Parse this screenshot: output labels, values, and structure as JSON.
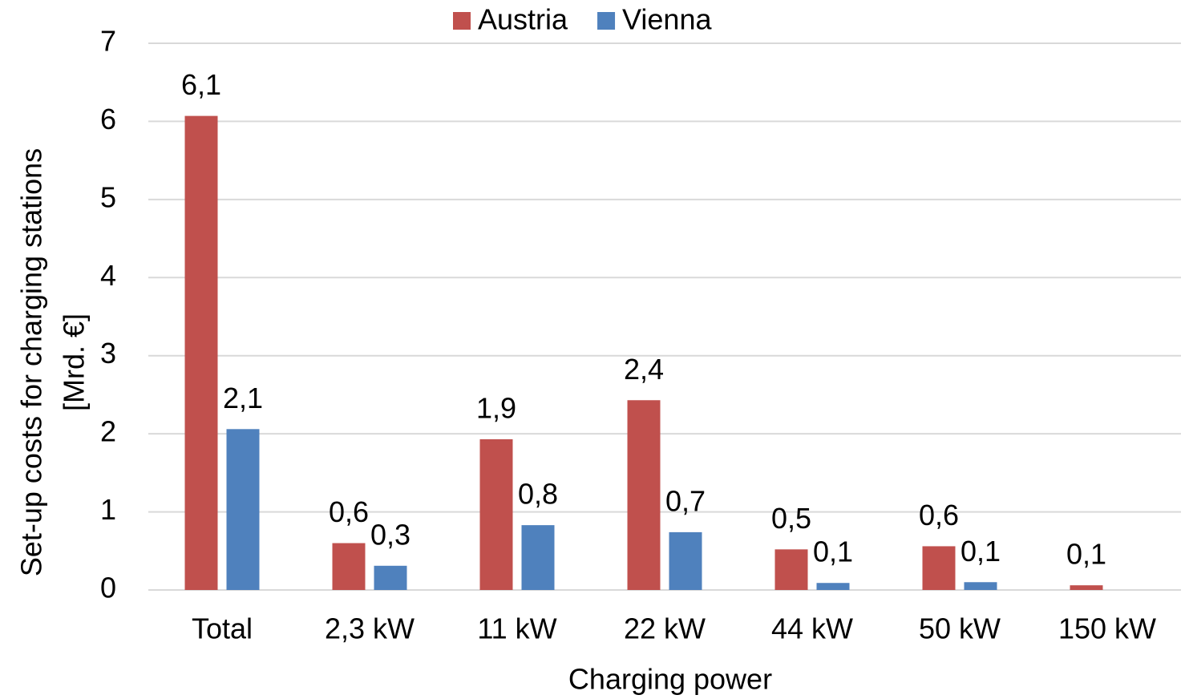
{
  "chart_data": {
    "type": "bar",
    "xlabel": "Charging power",
    "ylabel": [
      "Set-up costs for charging stations",
      "[Mrd. €]"
    ],
    "categories": [
      "Total",
      "2,3 kW",
      "11 kW",
      "22 kW",
      "44 kW",
      "50 kW",
      "150 kW"
    ],
    "series": [
      {
        "name": "Austria",
        "color": "#c0504d",
        "values": [
          6.07,
          0.6,
          1.93,
          2.43,
          0.52,
          0.56,
          0.06
        ],
        "value_labels": [
          "6,1",
          "0,6",
          "1,9",
          "2,4",
          "0,5",
          "0,6",
          "0,1"
        ]
      },
      {
        "name": "Vienna",
        "color": "#4f81bd",
        "values": [
          2.06,
          0.31,
          0.83,
          0.74,
          0.09,
          0.1,
          null
        ],
        "value_labels": [
          "2,1",
          "0,3",
          "0,8",
          "0,7",
          "0,1",
          "0,1",
          null
        ]
      }
    ],
    "ylim": [
      0,
      7
    ],
    "yticks": [
      0,
      1,
      2,
      3,
      4,
      5,
      6,
      7
    ],
    "grid": true,
    "legend": "top"
  }
}
